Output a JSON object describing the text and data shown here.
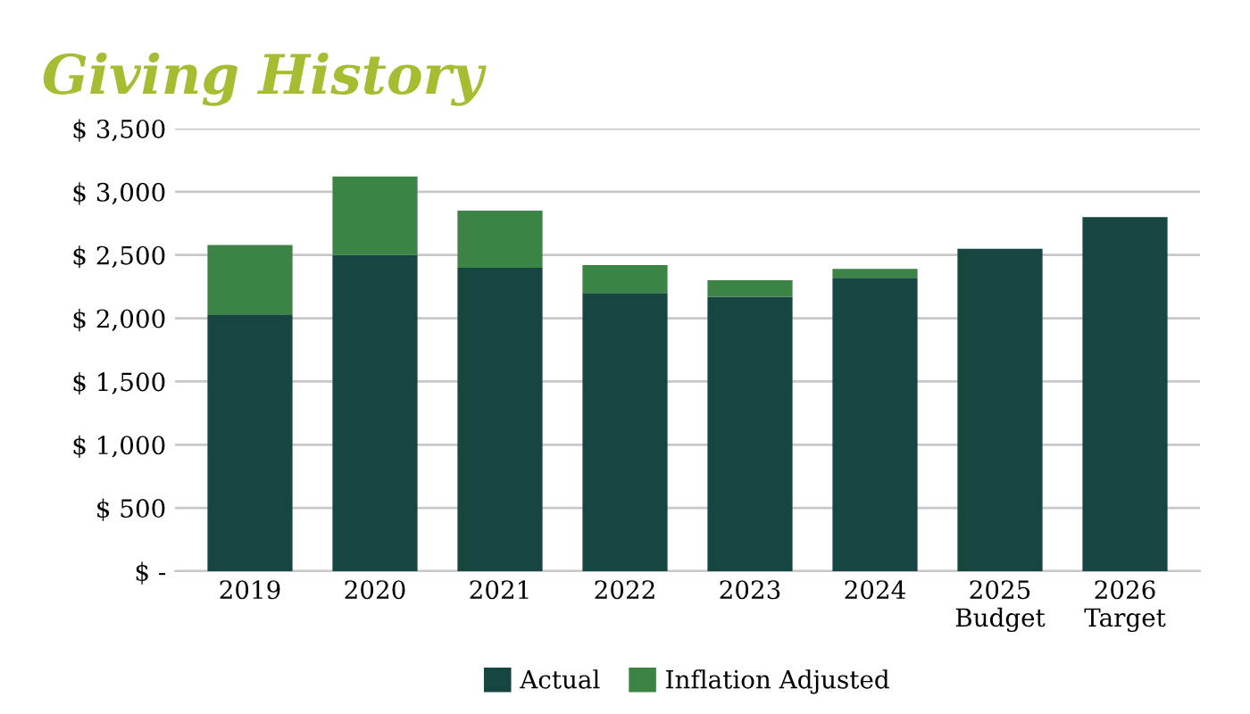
{
  "chart_data": {
    "type": "bar",
    "title": "Giving History",
    "stacked": true,
    "categories": [
      "2019",
      "2020",
      "2021",
      "2022",
      "2023",
      "2024",
      "2025\nBudget",
      "2026\nTarget"
    ],
    "series": [
      {
        "name": "Actual",
        "color": "#174540",
        "values": [
          2030,
          2500,
          2400,
          2200,
          2170,
          2320,
          2550,
          2800
        ]
      },
      {
        "name": "Inflation Adjusted",
        "color": "#3c8446",
        "values": [
          550,
          620,
          450,
          220,
          130,
          70,
          null,
          null
        ]
      }
    ],
    "ylim": [
      0,
      3500
    ],
    "yticks": [
      {
        "value": 0,
        "label": "$ -"
      },
      {
        "value": 500,
        "label": "$ 500"
      },
      {
        "value": 1000,
        "label": "$ 1,000"
      },
      {
        "value": 1500,
        "label": "$ 1,500"
      },
      {
        "value": 2000,
        "label": "$ 2,000"
      },
      {
        "value": 2500,
        "label": "$ 2,500"
      },
      {
        "value": 3000,
        "label": "$ 3,000"
      },
      {
        "value": 3500,
        "label": "$ 3,500"
      }
    ],
    "grid": "y",
    "legend": "bottom"
  }
}
